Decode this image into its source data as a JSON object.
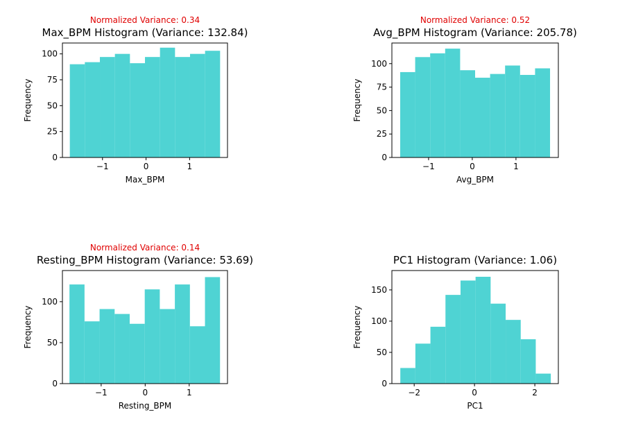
{
  "chart_data": [
    {
      "type": "histogram",
      "subtitle": "Normalized Variance: 0.34",
      "title": "Max_BPM Histogram (Variance: 132.84)",
      "xlabel": "Max_BPM",
      "ylabel": "Frequency",
      "color": "#4fd3d3",
      "bins": [
        -1.75,
        -1.405,
        -1.06,
        -0.715,
        -0.37,
        -0.025,
        0.32,
        0.665,
        1.01,
        1.355,
        1.7
      ],
      "values": [
        90,
        92,
        97,
        100,
        91,
        97,
        106,
        97,
        100,
        103
      ],
      "xlim": [
        -1.92,
        1.87
      ],
      "ylim": [
        0,
        110.5
      ],
      "xticks": [
        {
          "value": -1,
          "label": "−1"
        },
        0,
        1
      ],
      "yticks": [
        0,
        25,
        50,
        75,
        100
      ]
    },
    {
      "type": "histogram",
      "subtitle": "Normalized Variance: 0.52",
      "title": "Avg_BPM Histogram (Variance: 205.78)",
      "xlabel": "Avg_BPM",
      "ylabel": "Frequency",
      "color": "#4fd3d3",
      "bins": [
        -1.65,
        -1.307,
        -0.964,
        -0.621,
        -0.278,
        0.065,
        0.408,
        0.751,
        1.094,
        1.437,
        1.78
      ],
      "values": [
        91,
        107,
        111,
        116,
        93,
        85,
        89,
        98,
        88,
        95
      ],
      "xlim": [
        -1.84,
        1.97
      ],
      "ylim": [
        0,
        122
      ],
      "xticks": [
        {
          "value": -1,
          "label": "−1"
        },
        0,
        1
      ],
      "yticks": [
        0,
        25,
        50,
        75,
        100
      ]
    },
    {
      "type": "histogram",
      "subtitle": "Normalized Variance: 0.14",
      "title": "Resting_BPM Histogram (Variance: 53.69)",
      "xlabel": "Resting_BPM",
      "ylabel": "Frequency",
      "color": "#4fd3d3",
      "bins": [
        -1.72,
        -1.378,
        -1.036,
        -0.694,
        -0.352,
        -0.01,
        0.332,
        0.674,
        1.016,
        1.358,
        1.7
      ],
      "values": [
        121,
        76,
        91,
        85,
        73,
        115,
        91,
        121,
        70,
        130
      ],
      "xlim": [
        -1.88,
        1.87
      ],
      "ylim": [
        0,
        138
      ],
      "xticks": [
        {
          "value": -1,
          "label": "−1"
        },
        0,
        1
      ],
      "yticks": [
        0,
        50,
        100
      ]
    },
    {
      "type": "histogram",
      "title": "PC1 Histogram (Variance: 1.06)",
      "xlabel": "PC1",
      "ylabel": "Frequency",
      "color": "#4fd3d3",
      "bins": [
        -2.46,
        -1.961,
        -1.462,
        -0.963,
        -0.464,
        0.035,
        0.534,
        1.033,
        1.532,
        2.031,
        2.53
      ],
      "values": [
        25,
        64,
        91,
        142,
        165,
        171,
        128,
        102,
        71,
        16
      ],
      "xlim": [
        -2.74,
        2.78
      ],
      "ylim": [
        0,
        181
      ],
      "xticks": [
        {
          "value": -2,
          "label": "−2"
        },
        0,
        2
      ],
      "yticks": [
        0,
        50,
        100,
        150
      ]
    }
  ]
}
